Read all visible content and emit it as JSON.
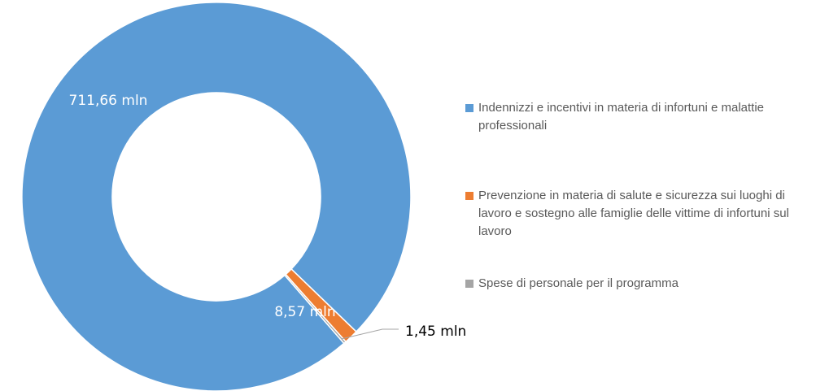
{
  "chart_data": {
    "type": "donut",
    "categories": [
      "Indennizzi e incentivi in materia di infortuni e malattie professionali",
      "Prevenzione in materia di salute e sicurezza sui luoghi di lavoro e sostegno alle famiglie delle vittime di infortuni sul lavoro",
      "Spese di personale per il programma"
    ],
    "values": [
      711.66,
      8.57,
      1.45
    ],
    "value_labels": [
      "711,66 mln",
      "8,57 mln",
      "1,45 mln"
    ],
    "colors": [
      "#5b9bd5",
      "#ed7d31",
      "#a5a5a5"
    ],
    "legend": "right"
  }
}
